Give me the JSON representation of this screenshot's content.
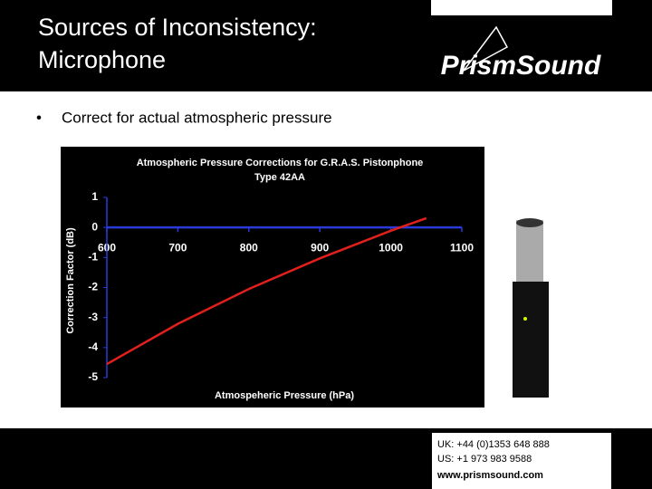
{
  "slide": {
    "title_lines": [
      "Sources of Inconsistency:",
      "Microphone"
    ],
    "logo": "PrismSound",
    "bullet": "Correct for actual atmospheric pressure",
    "contact": [
      "UK: +44 (0)1353 648 888",
      "US: +1 973 983 9588",
      "www.prismsound.com"
    ]
  },
  "chart_data": {
    "type": "line",
    "title": "Atmospheric Pressure Corrections for G.R.A.S. Pistonphone",
    "subtitle": "Type 42AA",
    "x_label": "Atmospeheric Pressure (hPa)",
    "y_label": "Correction Factor (dB)",
    "x": [
      600,
      700,
      800,
      900,
      1000,
      1050
    ],
    "series": [
      {
        "color": "#e0201c",
        "values": [
          -4.55,
          -3.21,
          -2.05,
          -1.03,
          -0.11,
          0.31
        ]
      }
    ],
    "xlim": [
      600,
      1100
    ],
    "xticks": [
      600,
      700,
      800,
      900,
      1000,
      1100
    ],
    "ylim": [
      -5,
      1
    ],
    "yticks": [
      1,
      0,
      -1,
      -2,
      -3,
      -4,
      -5
    ]
  }
}
